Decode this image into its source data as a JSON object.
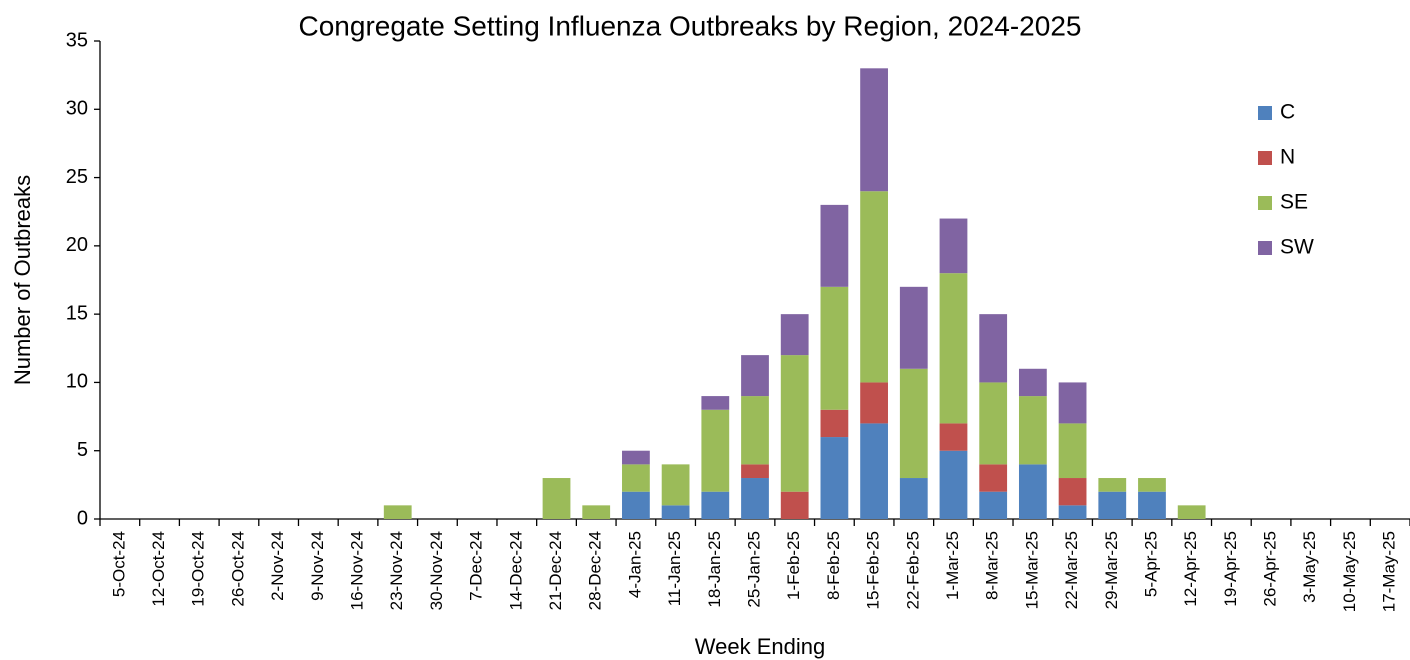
{
  "chart_data": {
    "type": "bar",
    "stacked": true,
    "title": "Congregate Setting Influenza Outbreaks by Region, 2024-2025",
    "x_label": "Week Ending",
    "y_label": "Number of Outbreaks",
    "categories": [
      "5-Oct-24",
      "12-Oct-24",
      "19-Oct-24",
      "26-Oct-24",
      "2-Nov-24",
      "9-Nov-24",
      "16-Nov-24",
      "23-Nov-24",
      "30-Nov-24",
      "7-Dec-24",
      "14-Dec-24",
      "21-Dec-24",
      "28-Dec-24",
      "4-Jan-25",
      "11-Jan-25",
      "18-Jan-25",
      "25-Jan-25",
      "1-Feb-25",
      "8-Feb-25",
      "15-Feb-25",
      "22-Feb-25",
      "1-Mar-25",
      "8-Mar-25",
      "15-Mar-25",
      "22-Mar-25",
      "29-Mar-25",
      "5-Apr-25",
      "12-Apr-25",
      "19-Apr-25",
      "26-Apr-25",
      "3-May-25",
      "10-May-25",
      "17-May-25"
    ],
    "series": [
      {
        "name": "C",
        "color": "#4f81bd",
        "values": [
          0,
          0,
          0,
          0,
          0,
          0,
          0,
          0,
          0,
          0,
          0,
          0,
          0,
          2,
          1,
          2,
          3,
          0,
          6,
          7,
          3,
          5,
          2,
          4,
          1,
          2,
          2,
          0,
          0,
          0,
          0,
          0,
          0
        ]
      },
      {
        "name": "N",
        "color": "#c0504d",
        "values": [
          0,
          0,
          0,
          0,
          0,
          0,
          0,
          0,
          0,
          0,
          0,
          0,
          0,
          0,
          0,
          0,
          1,
          2,
          2,
          3,
          0,
          2,
          2,
          0,
          2,
          0,
          0,
          0,
          0,
          0,
          0,
          0,
          0
        ]
      },
      {
        "name": "SE",
        "color": "#9bbb59",
        "values": [
          0,
          0,
          0,
          0,
          0,
          0,
          0,
          1,
          0,
          0,
          0,
          3,
          1,
          2,
          3,
          6,
          5,
          10,
          9,
          14,
          8,
          11,
          6,
          5,
          4,
          1,
          1,
          1,
          0,
          0,
          0,
          0,
          0
        ]
      },
      {
        "name": "SW",
        "color": "#8064a2",
        "values": [
          0,
          0,
          0,
          0,
          0,
          0,
          0,
          0,
          0,
          0,
          0,
          0,
          0,
          1,
          0,
          1,
          3,
          3,
          6,
          9,
          6,
          4,
          5,
          2,
          3,
          0,
          0,
          0,
          0,
          0,
          0,
          0,
          0
        ]
      }
    ],
    "ylim": [
      0,
      35
    ],
    "yticks": [
      0,
      5,
      10,
      15,
      20,
      25,
      30,
      35
    ],
    "legend": "right"
  }
}
